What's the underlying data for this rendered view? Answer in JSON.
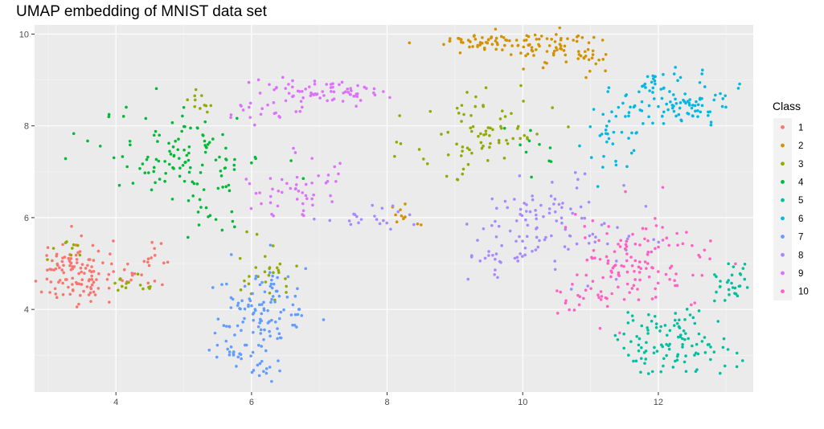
{
  "chart_data": {
    "type": "scatter",
    "title": "UMAP embedding of MNIST data set",
    "xlabel": "",
    "ylabel": "",
    "xlim": [
      2.8,
      13.4
    ],
    "ylim": [
      2.2,
      10.2
    ],
    "x_ticks": [
      4,
      6,
      8,
      10,
      12
    ],
    "y_ticks": [
      4,
      6,
      8,
      10
    ],
    "grid": true,
    "legend": {
      "title": "Class",
      "placement": "right"
    },
    "point_count_per_class": 140,
    "series": [
      {
        "name": "1",
        "color": "#F8766D",
        "clusters": [
          {
            "cx": 3.35,
            "cy": 4.85,
            "sx": 0.3,
            "sy": 0.38,
            "w": 0.82
          },
          {
            "cx": 4.25,
            "cy": 4.75,
            "sx": 0.25,
            "sy": 0.18,
            "w": 0.12
          },
          {
            "cx": 4.6,
            "cy": 5.3,
            "sx": 0.15,
            "sy": 0.2,
            "w": 0.06
          }
        ]
      },
      {
        "name": "2",
        "color": "#D39200",
        "clusters": [
          {
            "cx": 9.6,
            "cy": 9.85,
            "sx": 0.45,
            "sy": 0.1,
            "w": 0.45
          },
          {
            "cx": 10.6,
            "cy": 9.65,
            "sx": 0.4,
            "sy": 0.18,
            "w": 0.4
          },
          {
            "cx": 8.25,
            "cy": 6.1,
            "sx": 0.12,
            "sy": 0.15,
            "w": 0.08
          },
          {
            "cx": 11.0,
            "cy": 9.35,
            "sx": 0.1,
            "sy": 0.15,
            "w": 0.07
          }
        ]
      },
      {
        "name": "3",
        "color": "#93AA00",
        "clusters": [
          {
            "cx": 9.4,
            "cy": 7.8,
            "sx": 0.5,
            "sy": 0.55,
            "w": 0.55
          },
          {
            "cx": 6.2,
            "cy": 4.85,
            "sx": 0.25,
            "sy": 0.3,
            "w": 0.2
          },
          {
            "cx": 4.3,
            "cy": 4.6,
            "sx": 0.2,
            "sy": 0.15,
            "w": 0.1
          },
          {
            "cx": 5.3,
            "cy": 8.5,
            "sx": 0.15,
            "sy": 0.15,
            "w": 0.08
          },
          {
            "cx": 3.3,
            "cy": 5.35,
            "sx": 0.2,
            "sy": 0.15,
            "w": 0.07
          }
        ]
      },
      {
        "name": "4",
        "color": "#00BA38",
        "clusters": [
          {
            "cx": 5.0,
            "cy": 7.3,
            "sx": 0.6,
            "sy": 0.5,
            "w": 0.85
          },
          {
            "cx": 5.4,
            "cy": 5.9,
            "sx": 0.3,
            "sy": 0.2,
            "w": 0.08
          },
          {
            "cx": 10.2,
            "cy": 7.5,
            "sx": 0.3,
            "sy": 0.3,
            "w": 0.07
          }
        ]
      },
      {
        "name": "5",
        "color": "#00C19F",
        "clusters": [
          {
            "cx": 12.2,
            "cy": 3.3,
            "sx": 0.45,
            "sy": 0.35,
            "w": 0.8
          },
          {
            "cx": 13.1,
            "cy": 4.6,
            "sx": 0.15,
            "sy": 0.25,
            "w": 0.2
          }
        ]
      },
      {
        "name": "6",
        "color": "#00B9E3",
        "clusters": [
          {
            "cx": 12.3,
            "cy": 8.6,
            "sx": 0.4,
            "sy": 0.3,
            "w": 0.75
          },
          {
            "cx": 11.3,
            "cy": 7.8,
            "sx": 0.2,
            "sy": 0.4,
            "w": 0.25
          }
        ]
      },
      {
        "name": "7",
        "color": "#619CFF",
        "clusters": [
          {
            "cx": 6.15,
            "cy": 3.85,
            "sx": 0.35,
            "sy": 0.55,
            "w": 0.85
          },
          {
            "cx": 5.75,
            "cy": 3.05,
            "sx": 0.12,
            "sy": 0.08,
            "w": 0.08
          },
          {
            "cx": 6.25,
            "cy": 2.7,
            "sx": 0.12,
            "sy": 0.1,
            "w": 0.07
          }
        ]
      },
      {
        "name": "8",
        "color": "#A58AFF",
        "clusters": [
          {
            "cx": 10.4,
            "cy": 5.8,
            "sx": 0.55,
            "sy": 0.5,
            "w": 0.75
          },
          {
            "cx": 7.7,
            "cy": 6.0,
            "sx": 0.35,
            "sy": 0.12,
            "w": 0.15
          },
          {
            "cx": 9.6,
            "cy": 5.1,
            "sx": 0.2,
            "sy": 0.15,
            "w": 0.1
          }
        ]
      },
      {
        "name": "9",
        "color": "#DB72FB",
        "clusters": [
          {
            "cx": 7.1,
            "cy": 8.75,
            "sx": 0.45,
            "sy": 0.15,
            "w": 0.45
          },
          {
            "cx": 6.3,
            "cy": 8.5,
            "sx": 0.3,
            "sy": 0.2,
            "w": 0.2
          },
          {
            "cx": 6.7,
            "cy": 6.6,
            "sx": 0.4,
            "sy": 0.35,
            "w": 0.35
          }
        ]
      },
      {
        "name": "10",
        "color": "#FF61C3",
        "clusters": [
          {
            "cx": 11.7,
            "cy": 5.0,
            "sx": 0.55,
            "sy": 0.5,
            "w": 0.85
          },
          {
            "cx": 11.0,
            "cy": 4.2,
            "sx": 0.25,
            "sy": 0.2,
            "w": 0.15
          }
        ]
      }
    ]
  }
}
